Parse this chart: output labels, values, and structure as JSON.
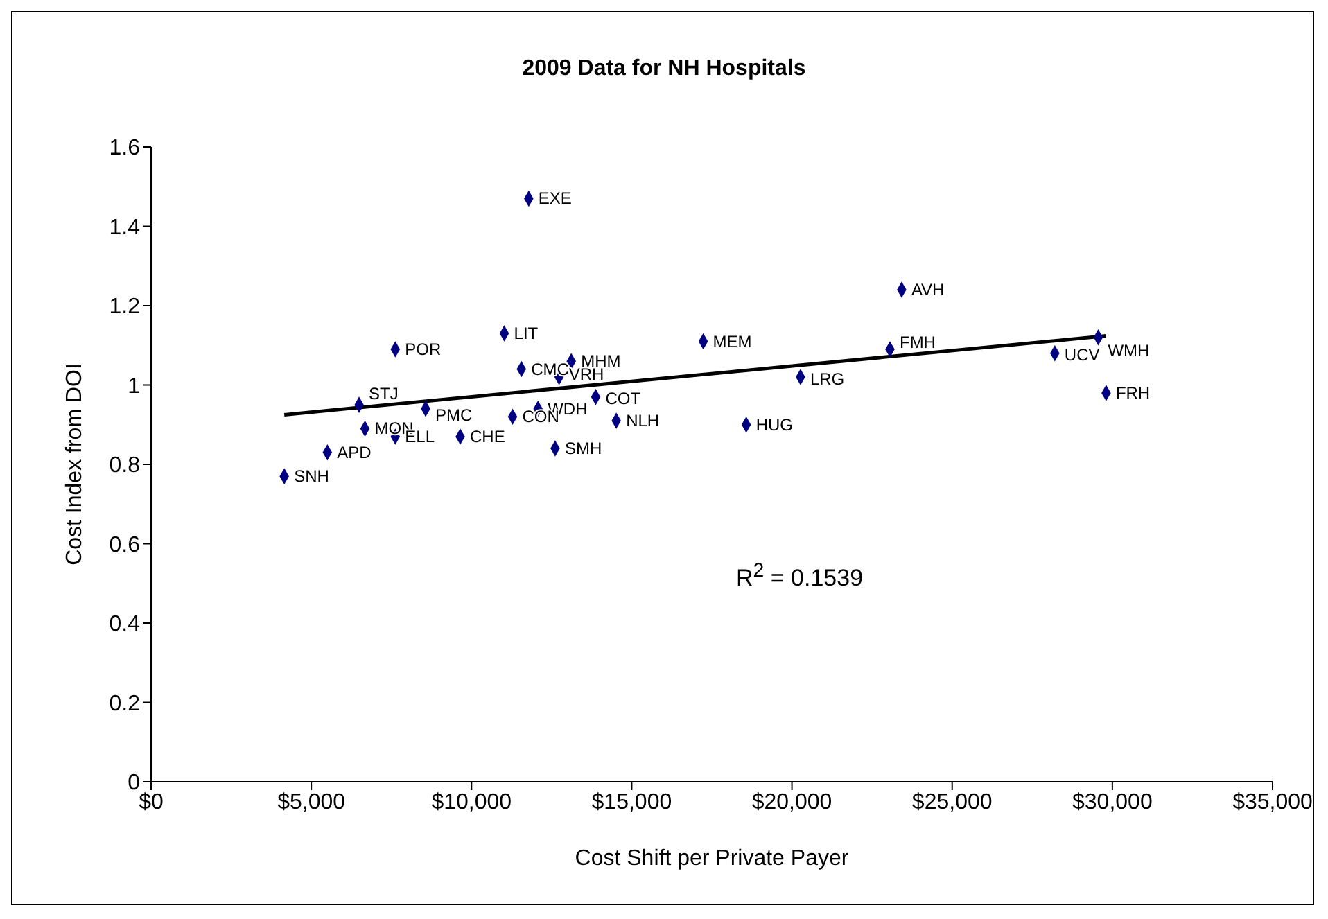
{
  "chart_data": {
    "type": "scatter",
    "title": "2009 Data for NH Hospitals",
    "xlabel": "Cost Shift per Private Payer",
    "ylabel": "Cost Index from DOI",
    "annotations": [
      "R$^{2}$ = 0.1539"
    ],
    "series": [
      {
        "color": "#000080",
        "marker": "diamond",
        "x": [
          11786,
          11022,
          7621,
          17232,
          11557,
          13113,
          12733,
          6491,
          8568,
          12075,
          13877,
          11282,
          14518,
          6674,
          7621,
          9648,
          12610,
          5501,
          4157,
          18574,
          23425,
          23059,
          20267,
          28204,
          29559,
          29806
        ],
        "values": [
          1.47,
          1.13,
          1.09,
          1.11,
          1.04,
          1.06,
          1.02,
          0.95,
          0.94,
          0.94,
          0.97,
          0.92,
          0.91,
          0.89,
          0.87,
          0.87,
          0.84,
          0.83,
          0.77,
          0.9,
          1.24,
          1.09,
          1.02,
          1.08,
          1.12,
          0.98
        ],
        "value_labels": [
          "EXE",
          "LIT",
          "POR",
          "MEM",
          "CMC",
          "MHM",
          "VRH",
          "STJ",
          "PMC",
          "WDH",
          "COT",
          "CON",
          "NLH",
          "MON",
          "ELL",
          "CHE",
          "SMH",
          "APD",
          "SNH",
          "HUG",
          "AVH",
          "FMH",
          "LRG",
          "UCV",
          "WMH",
          "FRH"
        ]
      },
      {
        "type": "line",
        "color": "#000000",
        "marker": "none",
        "x": [
          4157,
          29806
        ],
        "values": [
          0.925,
          1.124
        ]
      }
    ],
    "xlim": [
      0,
      35000
    ],
    "xticks": [
      {
        "value": 0,
        "label": "$0"
      },
      {
        "value": 5000,
        "label": "$5,000"
      },
      {
        "value": 10000,
        "label": "$10,000"
      },
      {
        "value": 15000,
        "label": "$15,000"
      },
      {
        "value": 20000,
        "label": "$20,000"
      },
      {
        "value": 25000,
        "label": "$25,000"
      },
      {
        "value": 30000,
        "label": "$30,000"
      },
      {
        "value": 35000,
        "label": "$35,000"
      }
    ],
    "ylim": [
      0,
      1.6
    ],
    "yticks": [
      0,
      0.2,
      0.4,
      0.6,
      0.8,
      1,
      1.2,
      1.4,
      1.6
    ],
    "grid": false
  }
}
